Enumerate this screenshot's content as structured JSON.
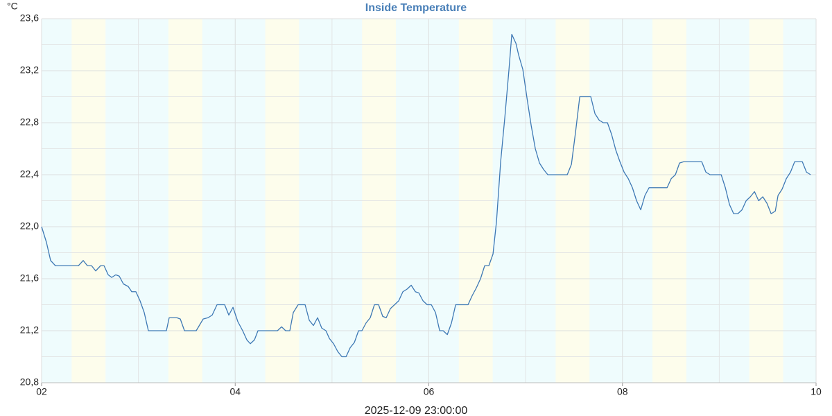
{
  "chart_data": {
    "type": "line",
    "title": "Inside Temperature",
    "title_color": "#4a80b8",
    "y_label": "°C",
    "footer": "2025-12-09 23:00:00",
    "xlim": [
      2,
      10
    ],
    "xticks": [
      {
        "value": 2,
        "label": "02"
      },
      {
        "value": 4,
        "label": "04"
      },
      {
        "value": 6,
        "label": "06"
      },
      {
        "value": 8,
        "label": "08"
      },
      {
        "value": 10,
        "label": "10"
      }
    ],
    "minor_xticks": [
      3,
      5,
      7,
      9
    ],
    "ylim": [
      20.8,
      23.6
    ],
    "yticks": [
      {
        "value": 20.8,
        "label": "20,8"
      },
      {
        "value": 21.2,
        "label": "21,2"
      },
      {
        "value": 21.6,
        "label": "21,6"
      },
      {
        "value": 22.0,
        "label": "22,0"
      },
      {
        "value": 22.4,
        "label": "22,4"
      },
      {
        "value": 22.8,
        "label": "22,8"
      },
      {
        "value": 23.2,
        "label": "23,2"
      },
      {
        "value": 23.6,
        "label": "23,6"
      }
    ],
    "minor_yticks": [
      21.0,
      21.4,
      21.8,
      22.2,
      22.6,
      23.0,
      23.4
    ],
    "grid": true,
    "night_color": "#effcfd",
    "day_color": "#fdfdec",
    "daylight": [
      [
        2.31,
        2.66
      ],
      [
        3.31,
        3.66
      ],
      [
        4.31,
        4.66
      ],
      [
        5.31,
        5.66
      ],
      [
        6.31,
        6.66
      ],
      [
        7.31,
        7.66
      ],
      [
        8.31,
        8.66
      ],
      [
        9.31,
        9.66
      ]
    ],
    "series": [
      {
        "name": "Inside Temperature",
        "color": "#3d78b4",
        "x": [
          2.0,
          2.05,
          2.093,
          2.143,
          2.38,
          2.43,
          2.473,
          2.516,
          2.559,
          2.609,
          2.645,
          2.688,
          2.724,
          2.766,
          2.802,
          2.845,
          2.895,
          2.931,
          2.974,
          3.017,
          3.06,
          3.103,
          3.254,
          3.289,
          3.318,
          3.397,
          3.433,
          3.476,
          3.597,
          3.669,
          3.719,
          3.762,
          3.812,
          3.891,
          3.934,
          3.977,
          4.027,
          4.077,
          4.12,
          4.156,
          4.199,
          4.235,
          4.436,
          4.479,
          4.521,
          4.564,
          4.6,
          4.65,
          4.722,
          4.765,
          4.808,
          4.851,
          4.894,
          4.937,
          4.973,
          5.016,
          5.059,
          5.102,
          5.145,
          5.188,
          5.231,
          5.274,
          5.309,
          5.352,
          5.395,
          5.438,
          5.481,
          5.524,
          5.56,
          5.603,
          5.646,
          5.689,
          5.732,
          5.775,
          5.818,
          5.861,
          5.897,
          5.94,
          5.983,
          6.026,
          6.069,
          6.112,
          6.148,
          6.191,
          6.234,
          6.277,
          6.37,
          6.405,
          6.448,
          6.491,
          6.534,
          6.577,
          6.62,
          6.663,
          6.699,
          6.742,
          6.785,
          6.828,
          6.857,
          6.9,
          6.928,
          6.971,
          7.014,
          7.057,
          7.1,
          7.143,
          7.186,
          7.229,
          7.43,
          7.473,
          7.516,
          7.559,
          7.673,
          7.716,
          7.759,
          7.802,
          7.845,
          7.888,
          7.931,
          7.974,
          8.017,
          8.06,
          8.103,
          8.146,
          8.189,
          8.232,
          8.275,
          8.461,
          8.504,
          8.547,
          8.59,
          8.633,
          8.819,
          8.862,
          8.905,
          9.02,
          9.063,
          9.106,
          9.149,
          9.192,
          9.235,
          9.278,
          9.321,
          9.364,
          9.407,
          9.45,
          9.493,
          9.536,
          9.579,
          9.607,
          9.65,
          9.693,
          9.736,
          9.779,
          9.858,
          9.901,
          9.944
        ],
        "values": [
          22.0,
          21.88,
          21.74,
          21.7,
          21.7,
          21.74,
          21.7,
          21.7,
          21.66,
          21.7,
          21.7,
          21.63,
          21.61,
          21.63,
          21.62,
          21.56,
          21.54,
          21.5,
          21.5,
          21.43,
          21.34,
          21.2,
          21.2,
          21.2,
          21.3,
          21.3,
          21.29,
          21.2,
          21.2,
          21.29,
          21.3,
          21.32,
          21.4,
          21.4,
          21.32,
          21.38,
          21.27,
          21.2,
          21.13,
          21.1,
          21.13,
          21.2,
          21.2,
          21.23,
          21.2,
          21.2,
          21.34,
          21.4,
          21.4,
          21.28,
          21.24,
          21.3,
          21.22,
          21.2,
          21.14,
          21.1,
          21.04,
          21.0,
          21.0,
          21.07,
          21.11,
          21.2,
          21.2,
          21.26,
          21.3,
          21.4,
          21.4,
          21.31,
          21.3,
          21.37,
          21.4,
          21.43,
          21.5,
          21.52,
          21.55,
          21.5,
          21.49,
          21.43,
          21.4,
          21.4,
          21.34,
          21.2,
          21.2,
          21.17,
          21.26,
          21.4,
          21.4,
          21.4,
          21.47,
          21.53,
          21.6,
          21.7,
          21.7,
          21.79,
          22.04,
          22.5,
          22.84,
          23.21,
          23.48,
          23.41,
          23.32,
          23.21,
          22.99,
          22.78,
          22.6,
          22.49,
          22.44,
          22.4,
          22.4,
          22.48,
          22.73,
          23.0,
          23.0,
          22.87,
          22.82,
          22.8,
          22.8,
          22.71,
          22.59,
          22.5,
          22.42,
          22.37,
          22.3,
          22.2,
          22.13,
          22.24,
          22.3,
          22.3,
          22.37,
          22.4,
          22.49,
          22.5,
          22.5,
          22.42,
          22.4,
          22.4,
          22.3,
          22.17,
          22.1,
          22.1,
          22.13,
          22.2,
          22.23,
          22.27,
          22.2,
          22.23,
          22.18,
          22.1,
          22.12,
          22.24,
          22.29,
          22.37,
          22.42,
          22.5,
          22.5,
          22.42,
          22.4
        ]
      }
    ]
  }
}
